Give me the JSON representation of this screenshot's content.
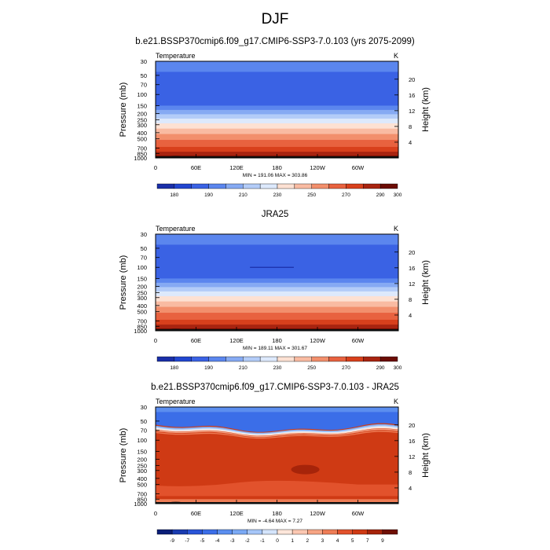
{
  "page": {
    "title": "DJF"
  },
  "colors": {
    "temperature_fills": [
      "#1a2fa8",
      "#2246d0",
      "#3a62e4",
      "#5b86ee",
      "#86aaf3",
      "#b3ccf8",
      "#dde9fc",
      "#fde1d3",
      "#f9bba2",
      "#f28f6c",
      "#e8623f",
      "#d8401c",
      "#a82410",
      "#6b0c04"
    ],
    "difference_fills": [
      "#0a1e78",
      "#1a3bb0",
      "#2a55d8",
      "#3b6ee8",
      "#5b8eef",
      "#7ba9f4",
      "#a6c6f8",
      "#d4e4fb",
      "#fde6da",
      "#fbc7b1",
      "#f6a484",
      "#ee7d56",
      "#e2522c",
      "#cf3a14",
      "#a6240a",
      "#6f1004"
    ],
    "terrain": "#111111"
  },
  "chart_data": [
    {
      "type": "heatmap",
      "variable": "Temperature",
      "title": "b.e21.BSSP370cmip6.f09_g17.CMIP6-SSP3-7.0.103 (yrs 2075-2099)",
      "left_label": "Temperature",
      "units": "K",
      "ylabel": "Pressure (mb)",
      "ylabel_right": "Height (km)",
      "xticks": [
        "0",
        "60E",
        "120E",
        "180",
        "120W",
        "60W"
      ],
      "x_values": [
        0,
        60,
        120,
        180,
        240,
        300
      ],
      "xlim": [
        0,
        360
      ],
      "yticks": [
        "30",
        "50",
        "70",
        "100",
        "150",
        "200",
        "250",
        "300",
        "400",
        "500",
        "700",
        "850",
        "1000"
      ],
      "y_values": [
        30,
        50,
        70,
        100,
        150,
        200,
        250,
        300,
        400,
        500,
        700,
        850,
        1000
      ],
      "ylim": [
        30,
        1000
      ],
      "height_ticks": [
        "4",
        "8",
        "12",
        "16",
        "20"
      ],
      "height_values": [
        4,
        8,
        12,
        16,
        20
      ],
      "stats": "MIN = 191.06  MAX = 303.86",
      "colorbar_labels": [
        "180",
        "190",
        "210",
        "230",
        "250",
        "270",
        "290",
        "300"
      ],
      "min": 191.06,
      "max": 303.86
    },
    {
      "type": "heatmap",
      "variable": "Temperature",
      "title": "JRA25",
      "left_label": "Temperature",
      "units": "K",
      "ylabel": "Pressure (mb)",
      "ylabel_right": "Height (km)",
      "xticks": [
        "0",
        "60E",
        "120E",
        "180",
        "120W",
        "60W"
      ],
      "x_values": [
        0,
        60,
        120,
        180,
        240,
        300
      ],
      "xlim": [
        0,
        360
      ],
      "yticks": [
        "30",
        "50",
        "70",
        "100",
        "150",
        "200",
        "250",
        "300",
        "400",
        "500",
        "700",
        "850",
        "1000"
      ],
      "y_values": [
        30,
        50,
        70,
        100,
        150,
        200,
        250,
        300,
        400,
        500,
        700,
        850,
        1000
      ],
      "ylim": [
        30,
        1000
      ],
      "height_ticks": [
        "4",
        "8",
        "12",
        "16",
        "20"
      ],
      "height_values": [
        4,
        8,
        12,
        16,
        20
      ],
      "stats": "MIN = 189.11  MAX = 301.67",
      "colorbar_labels": [
        "180",
        "190",
        "210",
        "230",
        "250",
        "270",
        "290",
        "300"
      ],
      "min": 189.11,
      "max": 301.67
    },
    {
      "type": "heatmap",
      "variable": "Temperature",
      "title": "b.e21.BSSP370cmip6.f09_g17.CMIP6-SSP3-7.0.103 - JRA25",
      "left_label": "Temperature",
      "units": "K",
      "ylabel": "Pressure (mb)",
      "ylabel_right": "Height (km)",
      "xticks": [
        "0",
        "60E",
        "120E",
        "180",
        "120W",
        "60W"
      ],
      "x_values": [
        0,
        60,
        120,
        180,
        240,
        300
      ],
      "xlim": [
        0,
        360
      ],
      "yticks": [
        "30",
        "50",
        "70",
        "100",
        "150",
        "200",
        "250",
        "300",
        "400",
        "500",
        "700",
        "850",
        "1000"
      ],
      "y_values": [
        30,
        50,
        70,
        100,
        150,
        200,
        250,
        300,
        400,
        500,
        700,
        850,
        1000
      ],
      "ylim": [
        30,
        1000
      ],
      "height_ticks": [
        "4",
        "8",
        "12",
        "16",
        "20"
      ],
      "height_values": [
        4,
        8,
        12,
        16,
        20
      ],
      "stats": "MIN = -4.64  MAX =  7.27",
      "colorbar_labels": [
        "-9",
        "-7",
        "-5",
        "-4",
        "-3",
        "-2",
        "-1",
        "0",
        "1",
        "2",
        "3",
        "4",
        "5",
        "7",
        "9"
      ],
      "min": -4.64,
      "max": 7.27
    }
  ]
}
